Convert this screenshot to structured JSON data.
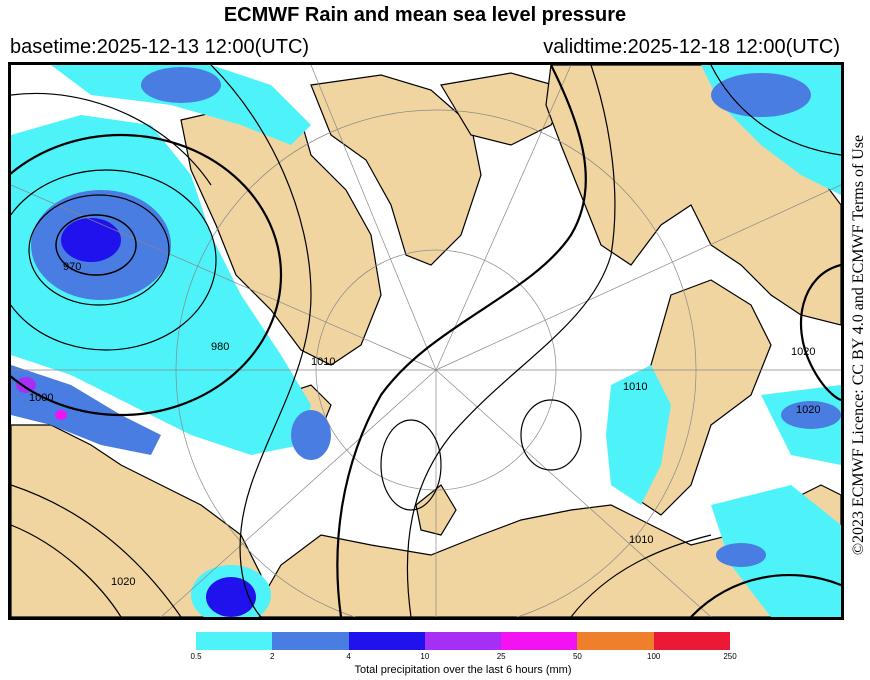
{
  "header": {
    "title": "ECMWF Rain and mean sea level pressure",
    "basetime": "basetime:2025-12-13 12:00(UTC)",
    "validtime": "validtime:2025-12-18 12:00(UTC)"
  },
  "licence": "©2023 ECMWF  Licence: CC BY 4.0 and ECMWF  Terms of Use",
  "map": {
    "contour_labels": [
      "970",
      "980",
      "1010",
      "1000",
      "1020",
      "1010",
      "1020",
      "1010",
      "1020"
    ],
    "colors": {
      "land": "#f0d5a0",
      "coast": "#000000",
      "isobar": "#000000",
      "graticule": "#888888"
    }
  },
  "colorbar": {
    "colors": [
      "#4ef2f9",
      "#4a7de2",
      "#2012ec",
      "#a72ff5",
      "#f312f2",
      "#ef7f2a",
      "#eb1836"
    ],
    "ticks": [
      "0.5",
      "2",
      "4",
      "10",
      "25",
      "50",
      "100",
      "250"
    ],
    "label": "Total precipitation over the last 6 hours (mm)"
  }
}
